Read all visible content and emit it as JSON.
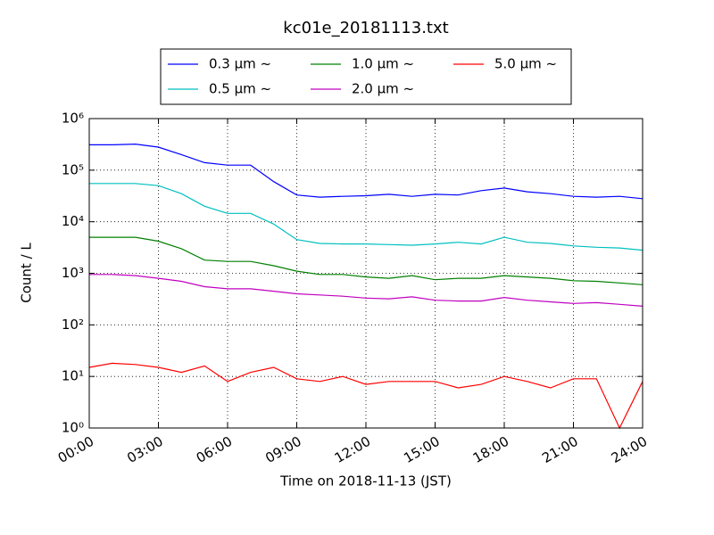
{
  "chart_data": {
    "type": "line",
    "title": "kc01e_20181113.txt",
    "xlabel": "Time on 2018-11-13 (JST)",
    "ylabel": "Count / L",
    "log_y": true,
    "grid": true,
    "legend": "top",
    "x": [
      0,
      1,
      2,
      3,
      4,
      5,
      6,
      7,
      8,
      9,
      10,
      11,
      12,
      13,
      14,
      15,
      16,
      17,
      18,
      19,
      20,
      21,
      22,
      23,
      24
    ],
    "xlim": [
      0,
      24
    ],
    "xticks": [
      {
        "value": 0,
        "label": "00:00"
      },
      {
        "value": 3,
        "label": "03:00"
      },
      {
        "value": 6,
        "label": "06:00"
      },
      {
        "value": 9,
        "label": "09:00"
      },
      {
        "value": 12,
        "label": "12:00"
      },
      {
        "value": 15,
        "label": "15:00"
      },
      {
        "value": 18,
        "label": "18:00"
      },
      {
        "value": 21,
        "label": "21:00"
      },
      {
        "value": 24,
        "label": "24:00"
      }
    ],
    "ylim": [
      1,
      1000000
    ],
    "yticks": [
      {
        "value": 1,
        "label": "10⁰"
      },
      {
        "value": 10,
        "label": "10¹"
      },
      {
        "value": 100,
        "label": "10²"
      },
      {
        "value": 1000,
        "label": "10³"
      },
      {
        "value": 10000,
        "label": "10⁴"
      },
      {
        "value": 100000,
        "label": "10⁵"
      },
      {
        "value": 1000000,
        "label": "10⁶"
      }
    ],
    "series": [
      {
        "name": "0.3 µm ~",
        "color": "#0000ff",
        "values": [
          310000,
          310000,
          320000,
          280000,
          200000,
          140000,
          125000,
          125000,
          60000,
          33000,
          30000,
          31000,
          32000,
          34000,
          31000,
          34000,
          33000,
          40000,
          45000,
          38000,
          35000,
          31000,
          30000,
          31000,
          28000
        ]
      },
      {
        "name": "0.5 µm ~",
        "color": "#00bfbf",
        "values": [
          55000,
          55000,
          55000,
          50000,
          35000,
          20000,
          14500,
          14500,
          9000,
          4500,
          3800,
          3700,
          3700,
          3600,
          3500,
          3700,
          4000,
          3700,
          5000,
          4000,
          3800,
          3400,
          3200,
          3100,
          2800
        ]
      },
      {
        "name": "1.0 µm ~",
        "color": "#008000",
        "values": [
          5000,
          5000,
          5000,
          4200,
          3000,
          1800,
          1700,
          1700,
          1400,
          1100,
          950,
          950,
          850,
          800,
          900,
          750,
          800,
          800,
          900,
          850,
          800,
          720,
          700,
          650,
          600
        ]
      },
      {
        "name": "2.0 µm ~",
        "color": "#bf00bf",
        "values": [
          950,
          950,
          900,
          800,
          700,
          550,
          500,
          500,
          450,
          400,
          380,
          360,
          330,
          320,
          350,
          300,
          290,
          290,
          340,
          300,
          280,
          260,
          270,
          250,
          230
        ]
      },
      {
        "name": "5.0 µm ~",
        "color": "#ff0000",
        "values": [
          15,
          18,
          17,
          15,
          12,
          16,
          8,
          12,
          15,
          9,
          8,
          10,
          7,
          8,
          8,
          8,
          6,
          7,
          10,
          8,
          6,
          9,
          9,
          1,
          8
        ]
      }
    ]
  }
}
